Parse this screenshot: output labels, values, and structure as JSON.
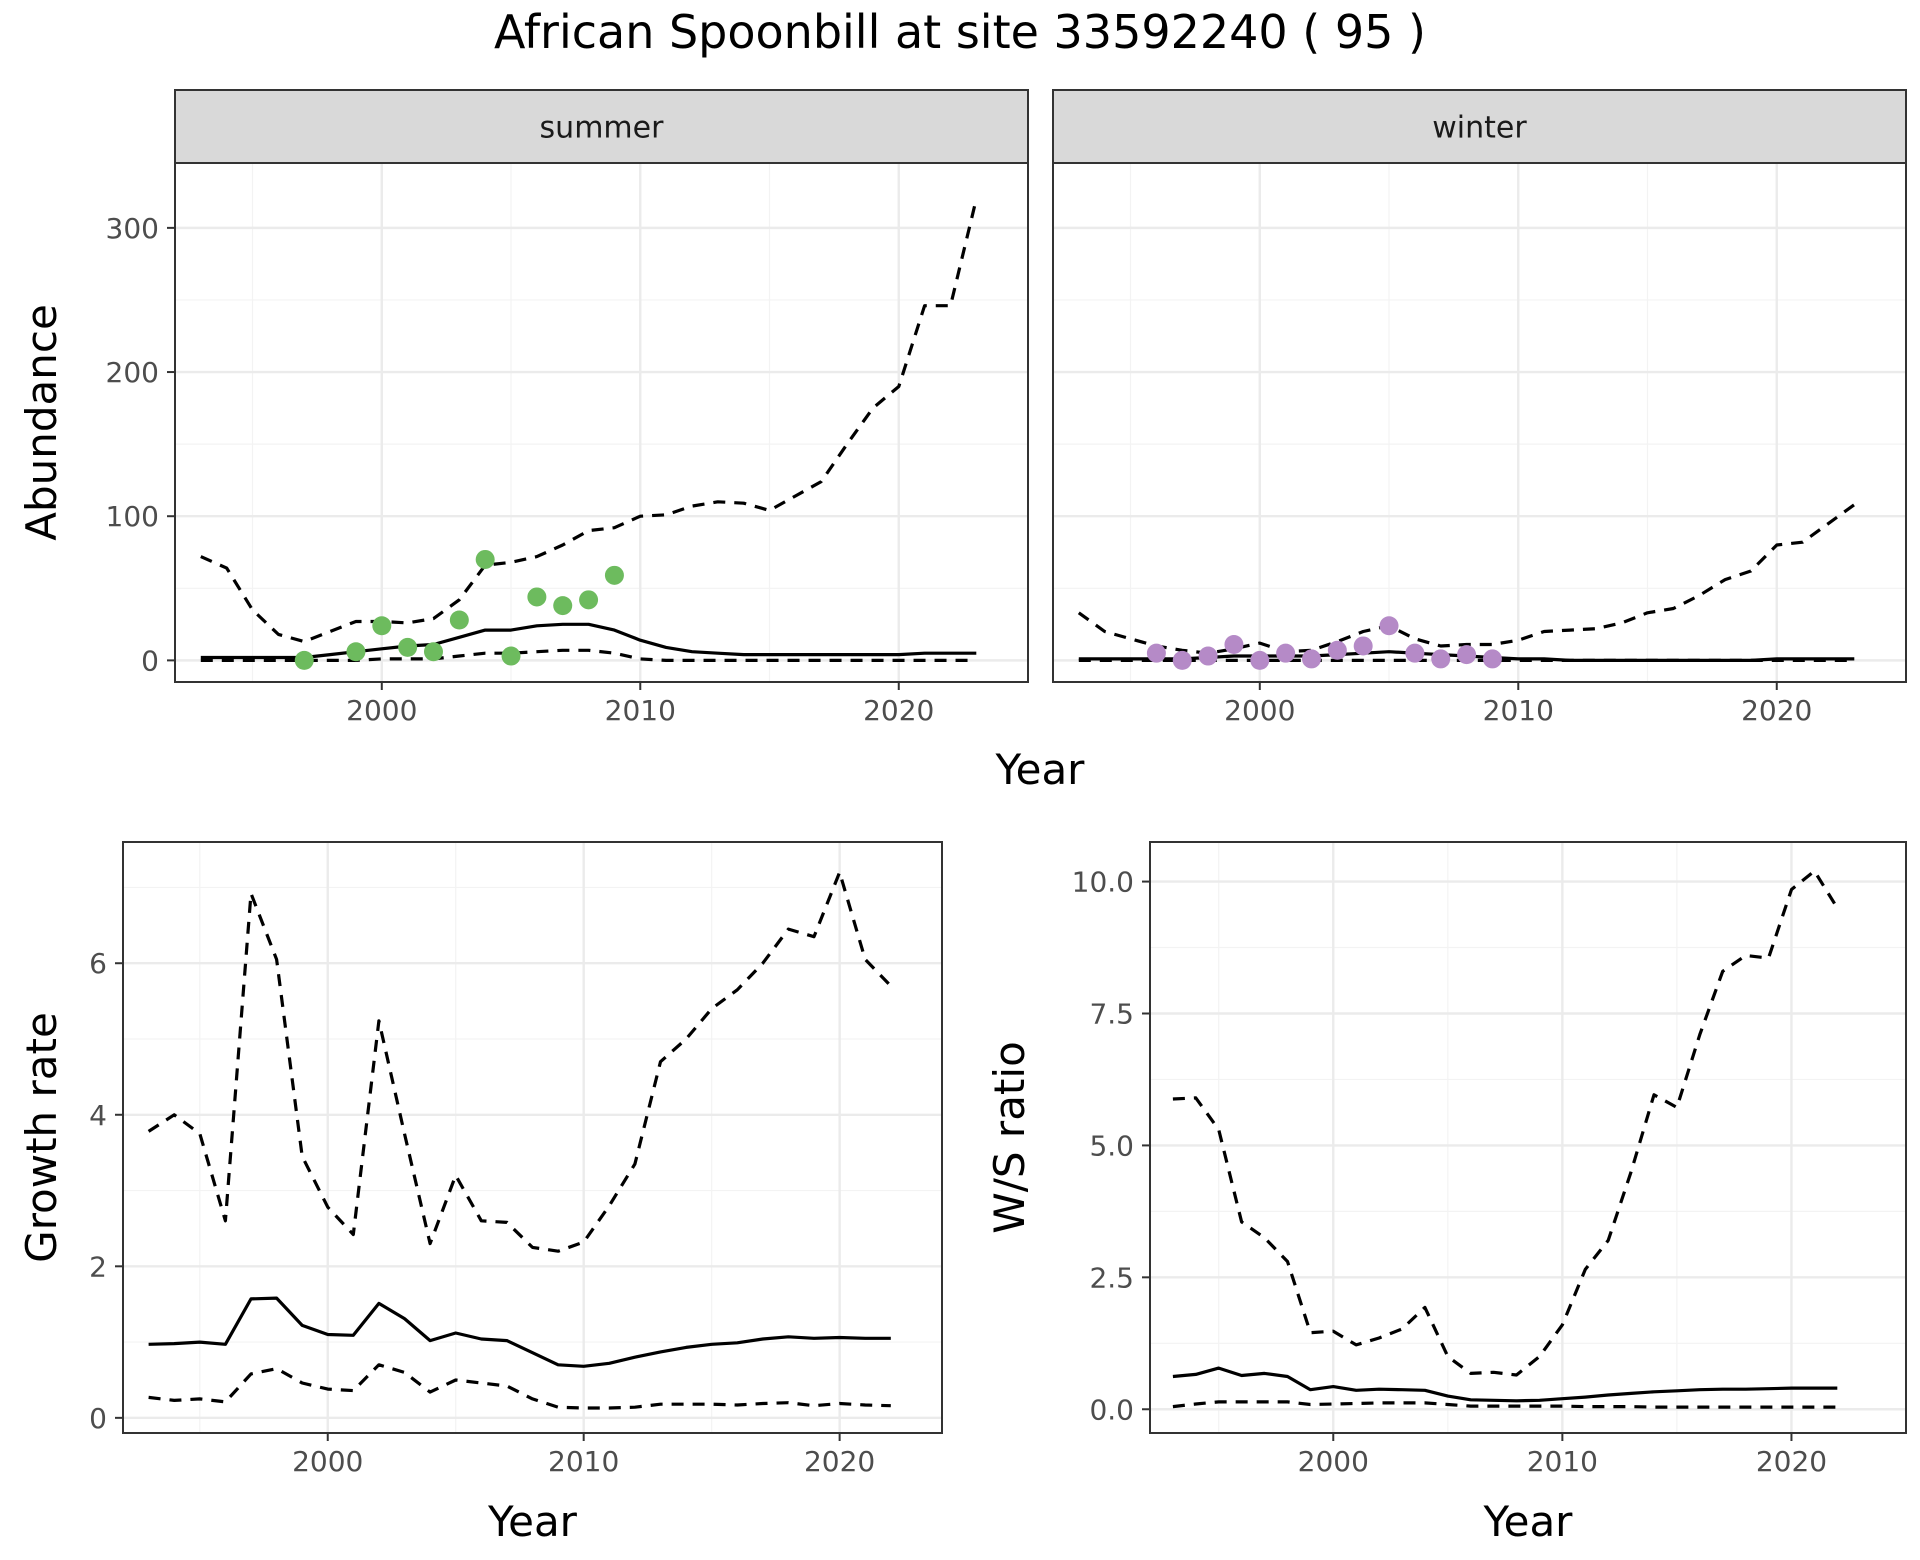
{
  "title": "African Spoonbill at site 33592240 ( 95 )",
  "colors": {
    "summer_points": "#6dbb5e",
    "winter_points": "#b58ac7",
    "strip_fill": "#d9d9d9"
  },
  "chart_data": [
    {
      "type": "line",
      "panel": "summer",
      "strip_label": "summer",
      "ylabel": "Abundance",
      "xlim": [
        1992,
        2025
      ],
      "ylim": [
        -15,
        345
      ],
      "x_ticks": [
        2000,
        2010,
        2020
      ],
      "x_tick_labels": [
        "2000",
        "2010",
        "2020"
      ],
      "y_ticks": [
        0,
        100,
        200,
        300
      ],
      "y_tick_labels": [
        "0",
        "100",
        "200",
        "300"
      ],
      "series": [
        {
          "role": "estimate",
          "style": "solid",
          "x": [
            1993,
            1994,
            1995,
            1996,
            1997,
            1998,
            1999,
            2000,
            2001,
            2002,
            2003,
            2004,
            2005,
            2006,
            2007,
            2008,
            2009,
            2010,
            2011,
            2012,
            2013,
            2014,
            2015,
            2016,
            2017,
            2018,
            2019,
            2020,
            2021,
            2022,
            2023
          ],
          "y": [
            2,
            2,
            2,
            2,
            2,
            4,
            6,
            8,
            10,
            11,
            16,
            21,
            21,
            24,
            25,
            25,
            21,
            14,
            9,
            6,
            5,
            4,
            4,
            4,
            4,
            4,
            4,
            4,
            5,
            5,
            5
          ]
        },
        {
          "role": "upper",
          "style": "dashed",
          "x": [
            1993,
            1994,
            1995,
            1996,
            1997,
            1998,
            1999,
            2000,
            2001,
            2002,
            2003,
            2004,
            2005,
            2006,
            2007,
            2008,
            2009,
            2010,
            2011,
            2012,
            2013,
            2014,
            2015,
            2016,
            2017,
            2018,
            2019,
            2020,
            2021,
            2022,
            2023
          ],
          "y": [
            72,
            64,
            35,
            18,
            13,
            20,
            27,
            27,
            26,
            29,
            42,
            66,
            68,
            72,
            80,
            90,
            92,
            100,
            101,
            107,
            110,
            109,
            104,
            114,
            124,
            150,
            175,
            190,
            246,
            246,
            320
          ]
        },
        {
          "role": "lower",
          "style": "dashed",
          "x": [
            1993,
            1994,
            1995,
            1996,
            1997,
            1998,
            1999,
            2000,
            2001,
            2002,
            2003,
            2004,
            2005,
            2006,
            2007,
            2008,
            2009,
            2010,
            2011,
            2012,
            2013,
            2014,
            2015,
            2016,
            2017,
            2018,
            2019,
            2020,
            2021,
            2022,
            2023
          ],
          "y": [
            0,
            0,
            0,
            0,
            0,
            0,
            0,
            1,
            1,
            1,
            3,
            5,
            5,
            6,
            7,
            7,
            5,
            1,
            0,
            0,
            0,
            0,
            0,
            0,
            0,
            0,
            0,
            0,
            0,
            0,
            0
          ]
        }
      ],
      "points": {
        "x": [
          1997,
          1999,
          2000,
          2001,
          2002,
          2003,
          2004,
          2005,
          2006,
          2007,
          2008,
          2009
        ],
        "y": [
          0,
          6,
          24,
          9,
          6,
          28,
          70,
          3,
          44,
          38,
          42,
          59
        ]
      }
    },
    {
      "type": "line",
      "panel": "winter",
      "strip_label": "winter",
      "ylabel": "",
      "xlim": [
        1992,
        2025
      ],
      "ylim": [
        -15,
        345
      ],
      "x_ticks": [
        2000,
        2010,
        2020
      ],
      "x_tick_labels": [
        "2000",
        "2010",
        "2020"
      ],
      "y_ticks": [
        0,
        100,
        200,
        300
      ],
      "series": [
        {
          "role": "estimate",
          "style": "solid",
          "x": [
            1993,
            1994,
            1995,
            1996,
            1997,
            1998,
            1999,
            2000,
            2001,
            2002,
            2003,
            2004,
            2005,
            2006,
            2007,
            2008,
            2009,
            2010,
            2011,
            2012,
            2013,
            2014,
            2015,
            2016,
            2017,
            2018,
            2019,
            2020,
            2021,
            2022,
            2023
          ],
          "y": [
            1,
            1,
            1,
            1,
            1,
            2,
            3,
            3,
            3,
            3,
            4,
            5,
            6,
            5,
            4,
            3,
            2,
            1,
            1,
            0,
            0,
            0,
            0,
            0,
            0,
            0,
            0,
            1,
            1,
            1,
            1
          ]
        },
        {
          "role": "upper",
          "style": "dashed",
          "x": [
            1993,
            1994,
            1995,
            1996,
            1997,
            1998,
            1999,
            2000,
            2001,
            2002,
            2003,
            2004,
            2005,
            2006,
            2007,
            2008,
            2009,
            2010,
            2011,
            2012,
            2013,
            2014,
            2015,
            2016,
            2017,
            2018,
            2019,
            2020,
            2021,
            2022,
            2023
          ],
          "y": [
            33,
            20,
            15,
            10,
            7,
            5,
            8,
            12,
            6,
            7,
            13,
            20,
            24,
            15,
            10,
            11,
            11,
            14,
            20,
            21,
            22,
            26,
            33,
            36,
            45,
            56,
            62,
            80,
            82,
            95,
            108
          ]
        },
        {
          "role": "lower",
          "style": "dashed",
          "x": [
            1993,
            1994,
            1995,
            1996,
            1997,
            1998,
            1999,
            2000,
            2001,
            2002,
            2003,
            2004,
            2005,
            2006,
            2007,
            2008,
            2009,
            2010,
            2011,
            2012,
            2013,
            2014,
            2015,
            2016,
            2017,
            2018,
            2019,
            2020,
            2021,
            2022,
            2023
          ],
          "y": [
            0,
            0,
            0,
            0,
            0,
            0,
            0,
            0,
            0,
            0,
            0,
            0,
            0,
            0,
            0,
            0,
            0,
            0,
            0,
            0,
            0,
            0,
            0,
            0,
            0,
            0,
            0,
            0,
            0,
            0,
            0
          ]
        }
      ],
      "points": {
        "x": [
          1996,
          1997,
          1998,
          1999,
          2000,
          2001,
          2002,
          2003,
          2004,
          2005,
          2006,
          2007,
          2008,
          2009
        ],
        "y": [
          5,
          0,
          3,
          11,
          0,
          5,
          1,
          7,
          10,
          24,
          5,
          1,
          4,
          1
        ]
      }
    },
    {
      "type": "line",
      "panel": "growth",
      "xlabel": "Year",
      "ylabel": "Growth rate",
      "xlim": [
        1992,
        2024
      ],
      "ylim": [
        -0.2,
        7.6
      ],
      "x_ticks": [
        2000,
        2010,
        2020
      ],
      "x_tick_labels": [
        "2000",
        "2010",
        "2020"
      ],
      "y_ticks": [
        0,
        2,
        4,
        6
      ],
      "y_tick_labels": [
        "0",
        "2",
        "4",
        "6"
      ],
      "series": [
        {
          "role": "estimate",
          "style": "solid",
          "x": [
            1993,
            1994,
            1995,
            1996,
            1997,
            1998,
            1999,
            2000,
            2001,
            2002,
            2003,
            2004,
            2005,
            2006,
            2007,
            2008,
            2009,
            2010,
            2011,
            2012,
            2013,
            2014,
            2015,
            2016,
            2017,
            2018,
            2019,
            2020,
            2021,
            2022
          ],
          "y": [
            0.97,
            0.98,
            1.0,
            0.97,
            1.57,
            1.58,
            1.22,
            1.1,
            1.09,
            1.51,
            1.31,
            1.02,
            1.12,
            1.04,
            1.02,
            0.86,
            0.7,
            0.68,
            0.72,
            0.8,
            0.87,
            0.93,
            0.97,
            0.99,
            1.04,
            1.07,
            1.05,
            1.06,
            1.05,
            1.05
          ]
        },
        {
          "role": "upper",
          "style": "dashed",
          "x": [
            1993,
            1994,
            1995,
            1996,
            1997,
            1998,
            1999,
            2000,
            2001,
            2002,
            2003,
            2004,
            2005,
            2006,
            2007,
            2008,
            2009,
            2010,
            2011,
            2012,
            2013,
            2014,
            2015,
            2016,
            2017,
            2018,
            2019,
            2020,
            2021,
            2022
          ],
          "y": [
            3.78,
            4.0,
            3.75,
            2.6,
            6.92,
            6.05,
            3.45,
            2.78,
            2.42,
            5.24,
            3.75,
            2.3,
            3.2,
            2.6,
            2.58,
            2.25,
            2.2,
            2.32,
            2.8,
            3.35,
            4.7,
            5.0,
            5.4,
            5.65,
            6.0,
            6.45,
            6.35,
            7.2,
            6.05,
            5.7
          ]
        },
        {
          "role": "lower",
          "style": "dashed",
          "x": [
            1993,
            1994,
            1995,
            1996,
            1997,
            1998,
            1999,
            2000,
            2001,
            2002,
            2003,
            2004,
            2005,
            2006,
            2007,
            2008,
            2009,
            2010,
            2011,
            2012,
            2013,
            2014,
            2015,
            2016,
            2017,
            2018,
            2019,
            2020,
            2021,
            2022
          ],
          "y": [
            0.27,
            0.23,
            0.25,
            0.21,
            0.58,
            0.65,
            0.46,
            0.38,
            0.36,
            0.7,
            0.6,
            0.34,
            0.5,
            0.46,
            0.42,
            0.25,
            0.14,
            0.13,
            0.13,
            0.14,
            0.18,
            0.18,
            0.18,
            0.17,
            0.19,
            0.2,
            0.16,
            0.19,
            0.17,
            0.16
          ]
        }
      ]
    },
    {
      "type": "line",
      "panel": "ratio",
      "xlabel": "Year",
      "ylabel": "W/S ratio",
      "xlim": [
        1992,
        2025
      ],
      "ylim": [
        -0.45,
        10.75
      ],
      "x_ticks": [
        2000,
        2010,
        2020
      ],
      "x_tick_labels": [
        "2000",
        "2010",
        "2020"
      ],
      "y_ticks": [
        0,
        2.5,
        5,
        7.5,
        10
      ],
      "y_tick_labels": [
        "0.0",
        "2.5",
        "5.0",
        "7.5",
        "10.0"
      ],
      "series": [
        {
          "role": "estimate",
          "style": "solid",
          "x": [
            1993,
            1994,
            1995,
            1996,
            1997,
            1998,
            1999,
            2000,
            2001,
            2002,
            2003,
            2004,
            2005,
            2006,
            2007,
            2008,
            2009,
            2010,
            2011,
            2012,
            2013,
            2014,
            2015,
            2016,
            2017,
            2018,
            2019,
            2020,
            2021,
            2022
          ],
          "y": [
            0.62,
            0.66,
            0.78,
            0.64,
            0.68,
            0.62,
            0.37,
            0.43,
            0.36,
            0.38,
            0.37,
            0.36,
            0.25,
            0.18,
            0.17,
            0.16,
            0.17,
            0.2,
            0.23,
            0.27,
            0.3,
            0.33,
            0.35,
            0.37,
            0.38,
            0.38,
            0.39,
            0.4,
            0.4,
            0.4
          ]
        },
        {
          "role": "upper",
          "style": "dashed",
          "x": [
            1993,
            1994,
            1995,
            1996,
            1997,
            1998,
            1999,
            2000,
            2001,
            2002,
            2003,
            2004,
            2005,
            2006,
            2007,
            2008,
            2009,
            2010,
            2011,
            2012,
            2013,
            2014,
            2015,
            2016,
            2017,
            2018,
            2019,
            2020,
            2021,
            2022
          ],
          "y": [
            5.88,
            5.9,
            5.3,
            3.55,
            3.25,
            2.8,
            1.45,
            1.48,
            1.22,
            1.35,
            1.52,
            1.93,
            1.0,
            0.68,
            0.7,
            0.65,
            1.0,
            1.6,
            2.65,
            3.2,
            4.5,
            5.96,
            5.72,
            7.1,
            8.3,
            8.6,
            8.55,
            9.85,
            10.2,
            9.5
          ]
        },
        {
          "role": "lower",
          "style": "dashed",
          "x": [
            1993,
            1994,
            1995,
            1996,
            1997,
            1998,
            1999,
            2000,
            2001,
            2002,
            2003,
            2004,
            2005,
            2006,
            2007,
            2008,
            2009,
            2010,
            2011,
            2012,
            2013,
            2014,
            2015,
            2016,
            2017,
            2018,
            2019,
            2020,
            2021,
            2022
          ],
          "y": [
            0.05,
            0.1,
            0.14,
            0.14,
            0.14,
            0.14,
            0.09,
            0.1,
            0.11,
            0.12,
            0.12,
            0.12,
            0.09,
            0.06,
            0.06,
            0.06,
            0.06,
            0.06,
            0.05,
            0.05,
            0.05,
            0.04,
            0.04,
            0.04,
            0.04,
            0.04,
            0.04,
            0.04,
            0.04,
            0.04
          ]
        }
      ]
    }
  ],
  "shared_xlabel_top": "Year"
}
